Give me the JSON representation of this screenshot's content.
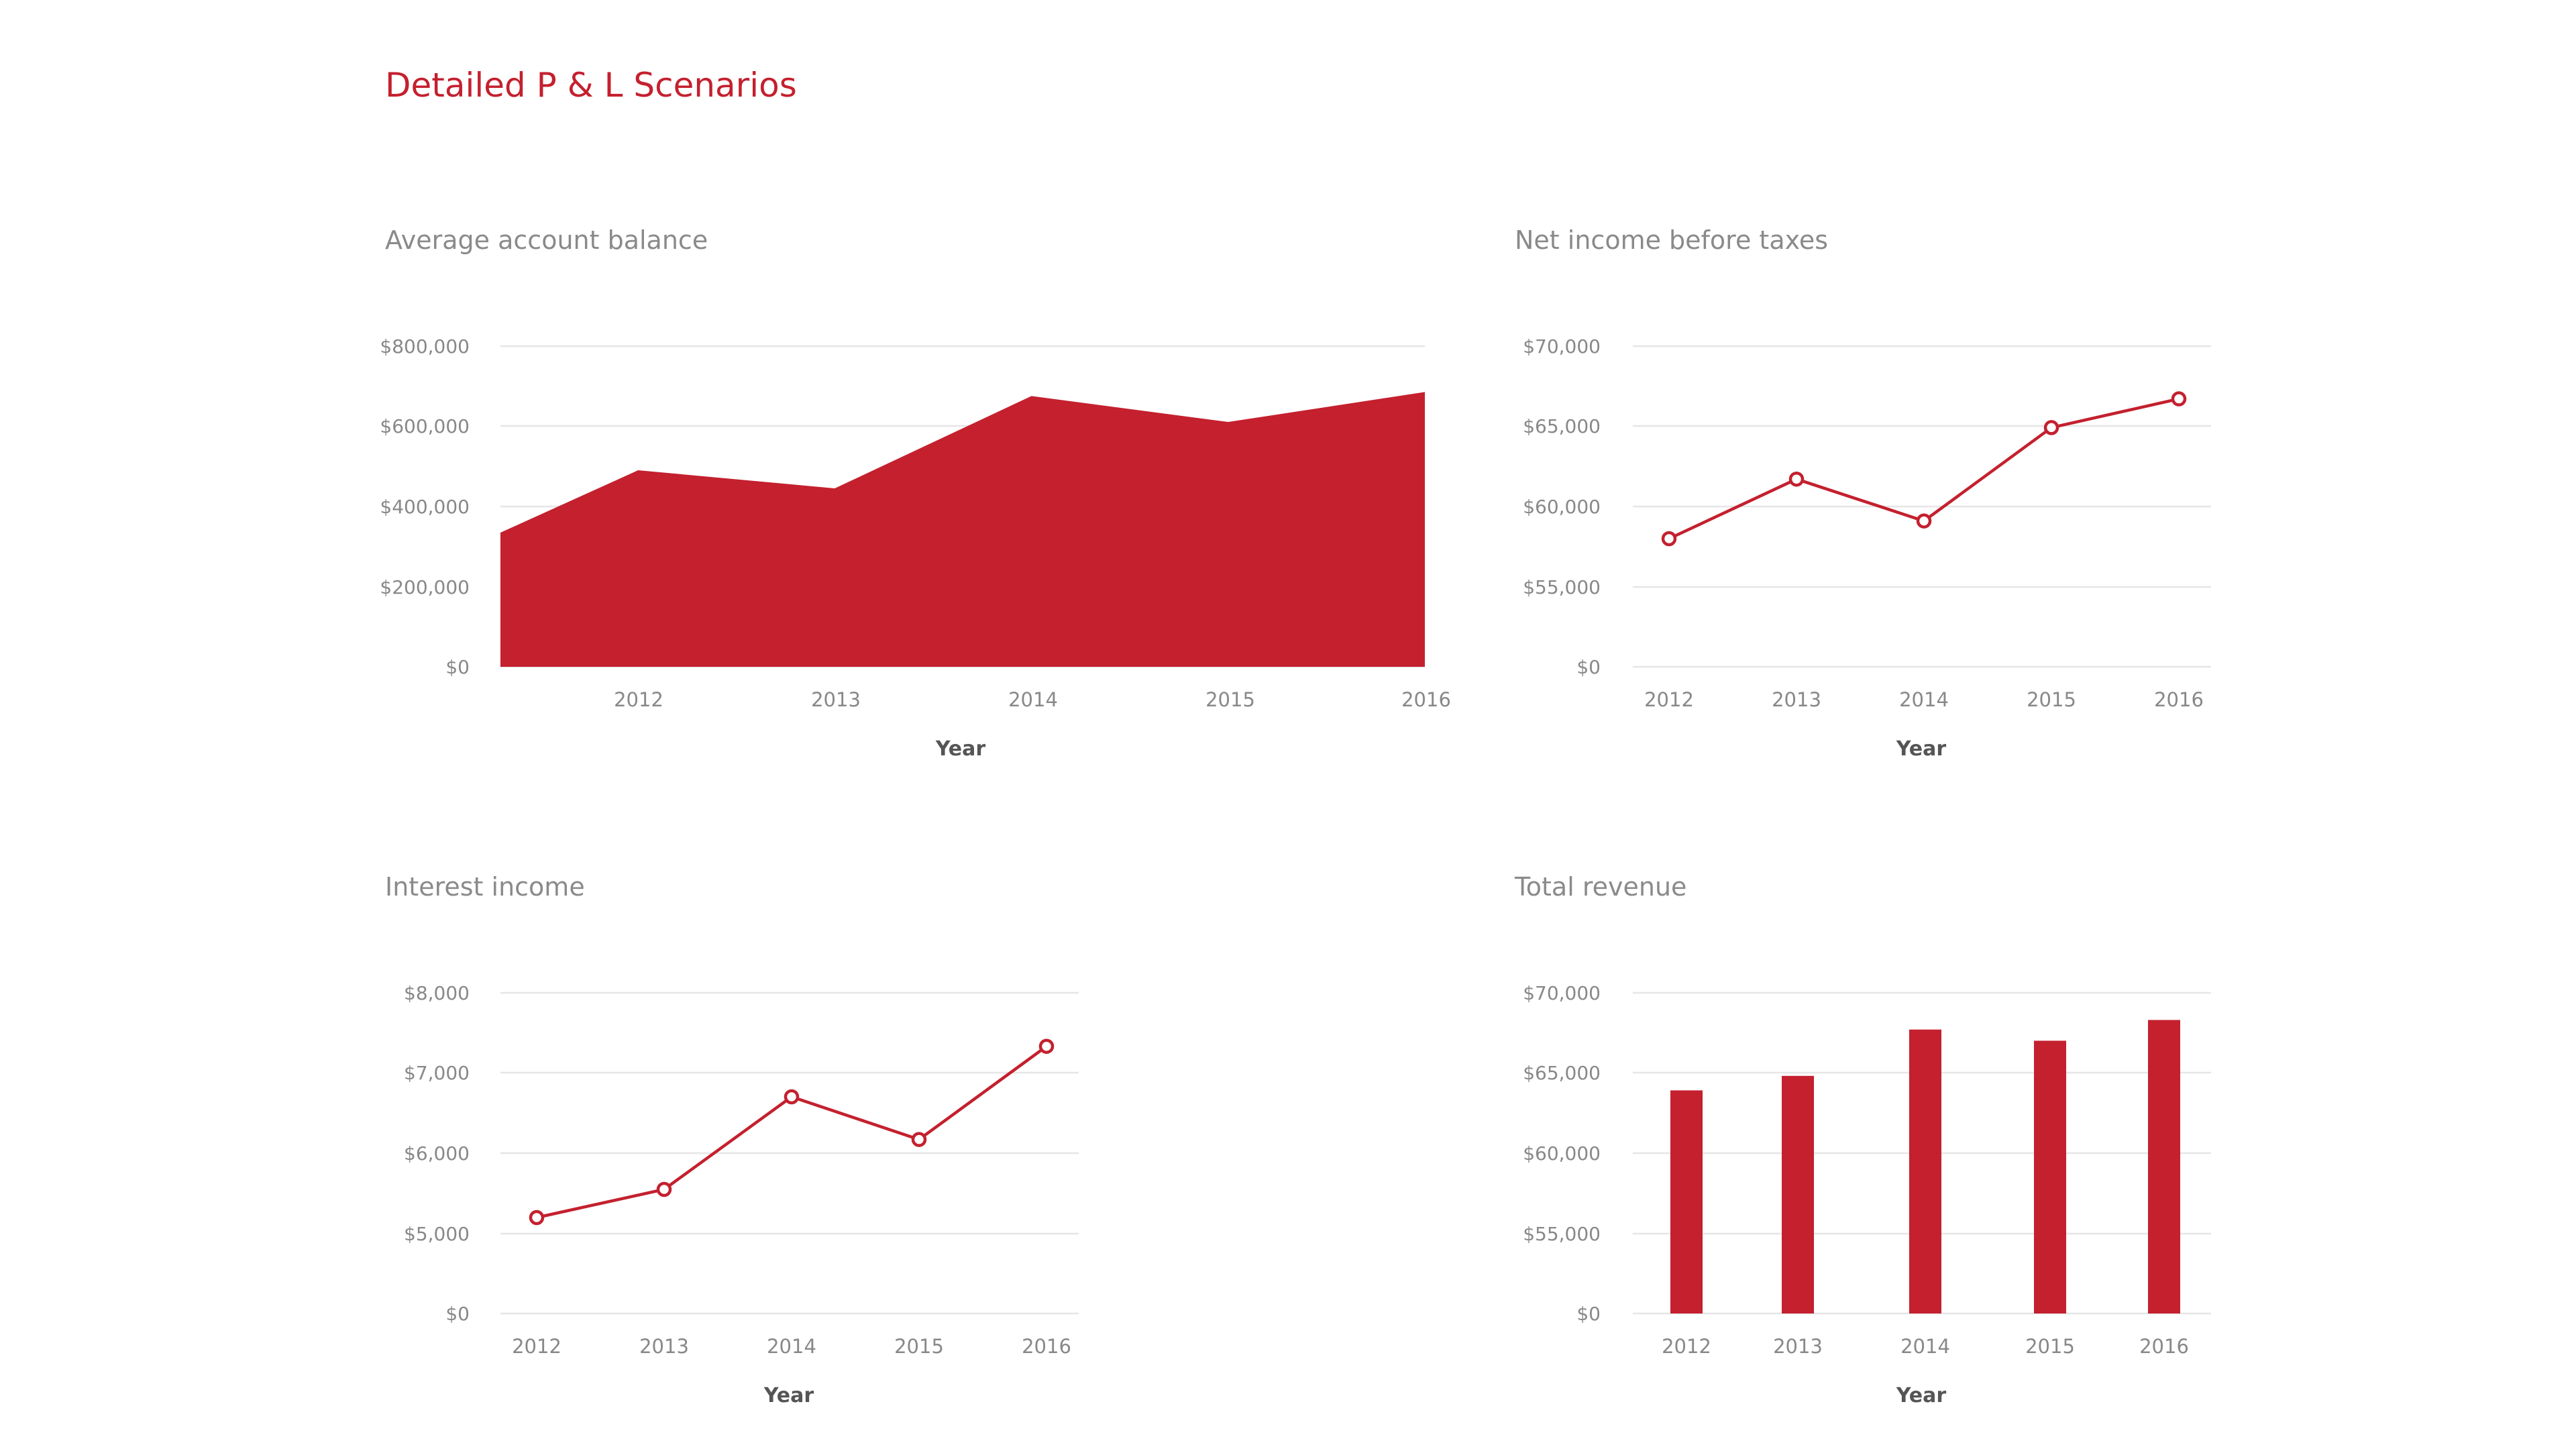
{
  "page": {
    "title": "Detailed P & L Scenarios"
  },
  "colors": {
    "accent": "#c4202e",
    "grid": "#e6e6e6",
    "axis_text": "#888888"
  },
  "chart_data": [
    {
      "id": "avg-balance",
      "type": "area",
      "title": "Average account balance",
      "xlabel": "Year",
      "ylabel": "",
      "categories": [
        "2012",
        "2013",
        "2014",
        "2015",
        "2016"
      ],
      "x_range": [
        2011.3,
        2016
      ],
      "x_values": [
        2011.3,
        2012,
        2013,
        2014,
        2015,
        2016
      ],
      "values": [
        335000,
        490000,
        445000,
        675000,
        610000,
        685000
      ],
      "y_ticks": [
        0,
        200000,
        400000,
        600000,
        800000
      ],
      "y_tick_labels": [
        "$0",
        "$200,000",
        "$400,000",
        "$600,000",
        "$800,000"
      ],
      "grid": true,
      "legend": "none"
    },
    {
      "id": "net-income",
      "type": "line",
      "title": "Net income before taxes",
      "xlabel": "Year",
      "ylabel": "",
      "categories": [
        "2012",
        "2013",
        "2014",
        "2015",
        "2016"
      ],
      "values": [
        58000,
        61700,
        59100,
        64900,
        66700
      ],
      "y_ticks": [
        0,
        55000,
        60000,
        65000,
        70000
      ],
      "y_tick_labels": [
        "$0",
        "$55,000",
        "$60,000",
        "$65,000",
        "$70,000"
      ],
      "grid": true,
      "legend": "none"
    },
    {
      "id": "interest-income",
      "type": "line",
      "title": "Interest income",
      "xlabel": "Year",
      "ylabel": "",
      "categories": [
        "2012",
        "2013",
        "2014",
        "2015",
        "2016"
      ],
      "values": [
        5200,
        5550,
        6700,
        6170,
        7330
      ],
      "y_ticks": [
        0,
        5000,
        6000,
        7000,
        8000
      ],
      "y_tick_labels": [
        "$0",
        "$5,000",
        "$6,000",
        "$7,000",
        "$8,000"
      ],
      "grid": true,
      "legend": "none"
    },
    {
      "id": "total-revenue",
      "type": "bar",
      "title": "Total revenue",
      "xlabel": "Year",
      "ylabel": "",
      "categories": [
        "2012",
        "2013",
        "2014",
        "2015",
        "2016"
      ],
      "values": [
        63900,
        64800,
        67700,
        67000,
        68300
      ],
      "y_ticks": [
        0,
        55000,
        60000,
        65000,
        70000
      ],
      "y_tick_labels": [
        "$0",
        "$55,000",
        "$60,000",
        "$65,000",
        "$70,000"
      ],
      "grid": true,
      "legend": "none"
    }
  ]
}
